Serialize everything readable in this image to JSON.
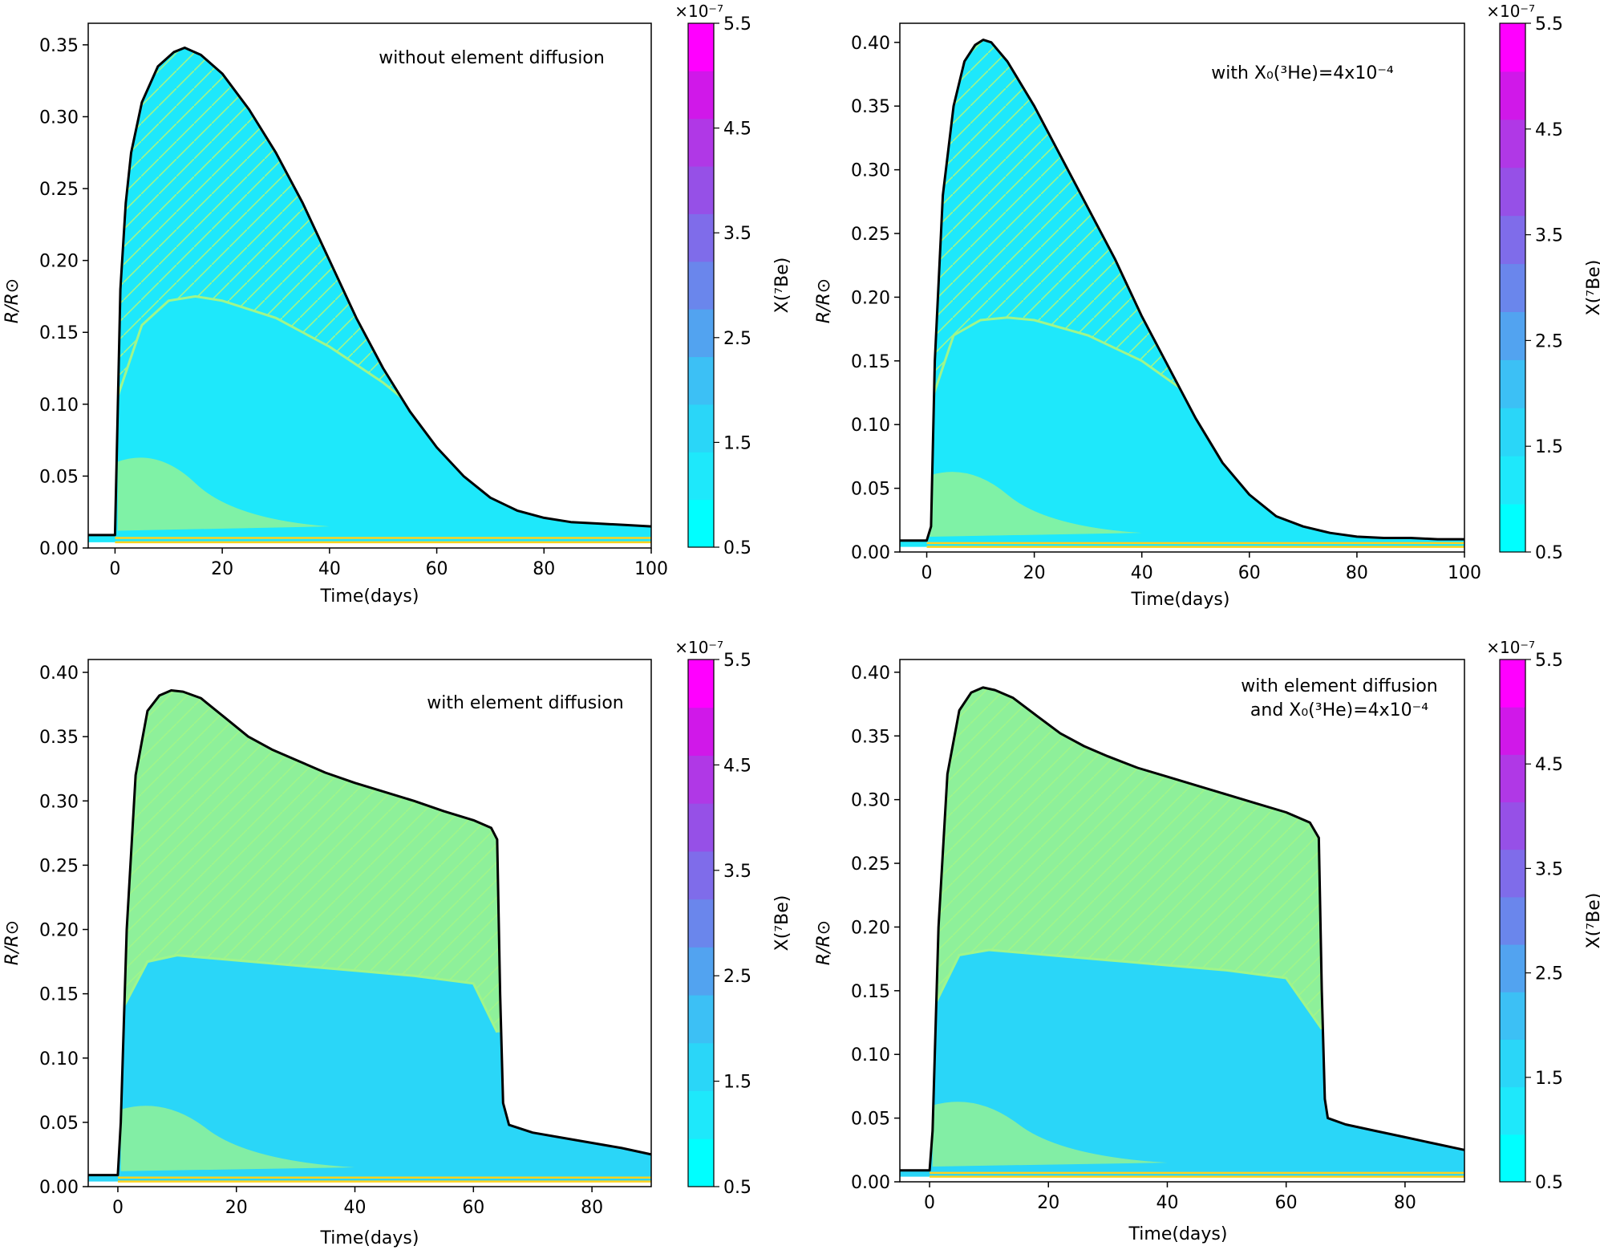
{
  "colorbar": {
    "label": "X(⁷Be)",
    "multiplier": "×10⁻⁷",
    "ticks": [
      "0.5",
      "1.5",
      "2.5",
      "3.5",
      "4.5",
      "5.5"
    ],
    "colors": [
      "#00ffff",
      "#1ee8fb",
      "#2ad6f8",
      "#3cc0f5",
      "#52a3f0",
      "#6a86ec",
      "#7f6cea",
      "#9650e7",
      "#b038e6",
      "#d018e9",
      "#ff00ff"
    ]
  },
  "chart_data": [
    {
      "type": "area",
      "title": "without element diffusion",
      "xlabel": "Time(days)",
      "ylabel": "R/R⊙",
      "xlim": [
        -5,
        100
      ],
      "ylim": [
        0.0,
        0.365
      ],
      "xticks": [
        "0",
        "20",
        "40",
        "60",
        "80",
        "100"
      ],
      "yticks": [
        "0.00",
        "0.05",
        "0.10",
        "0.15",
        "0.20",
        "0.25",
        "0.30",
        "0.35"
      ],
      "xtick_values": [
        0,
        20,
        40,
        60,
        80,
        100
      ],
      "ytick_values": [
        0,
        0.05,
        0.1,
        0.15,
        0.2,
        0.25,
        0.3,
        0.35
      ],
      "outer_radius": {
        "x": [
          -5,
          0,
          0.3,
          1,
          2,
          3,
          5,
          8,
          11,
          13,
          16,
          20,
          25,
          30,
          35,
          40,
          45,
          50,
          55,
          60,
          65,
          70,
          75,
          80,
          85,
          90,
          95,
          100
        ],
        "y": [
          0.009,
          0.009,
          0.06,
          0.18,
          0.24,
          0.275,
          0.31,
          0.335,
          0.345,
          0.348,
          0.343,
          0.33,
          0.305,
          0.275,
          0.24,
          0.2,
          0.16,
          0.125,
          0.095,
          0.07,
          0.05,
          0.035,
          0.026,
          0.021,
          0.018,
          0.017,
          0.016,
          0.015
        ]
      },
      "inner_boundary": {
        "x": [
          0,
          5,
          10,
          15,
          20,
          30,
          40,
          50,
          60,
          70,
          80,
          90
        ],
        "y": [
          0.1,
          0.155,
          0.172,
          0.175,
          0.172,
          0.16,
          0.14,
          0.115,
          0.085,
          0.055,
          0.03,
          0.018
        ]
      },
      "fill_level": 0.85
    },
    {
      "type": "area",
      "title": "with X₀(³He)=4x10⁻⁴",
      "xlabel": "Time(days)",
      "ylabel": "R/R⊙",
      "xlim": [
        -5,
        100
      ],
      "ylim": [
        0.0,
        0.415
      ],
      "xticks": [
        "0",
        "20",
        "40",
        "60",
        "80",
        "100"
      ],
      "yticks": [
        "0.00",
        "0.05",
        "0.10",
        "0.15",
        "0.20",
        "0.25",
        "0.30",
        "0.35",
        "0.40"
      ],
      "xtick_values": [
        0,
        20,
        40,
        60,
        80,
        100
      ],
      "ytick_values": [
        0,
        0.05,
        0.1,
        0.15,
        0.2,
        0.25,
        0.3,
        0.35,
        0.4
      ],
      "outer_radius": {
        "x": [
          -5,
          0,
          0.8,
          1.5,
          3,
          5,
          7,
          9,
          10.5,
          12,
          15,
          20,
          25,
          30,
          35,
          40,
          45,
          50,
          55,
          60,
          65,
          70,
          75,
          80,
          85,
          90,
          95,
          100
        ],
        "y": [
          0.009,
          0.009,
          0.02,
          0.15,
          0.28,
          0.35,
          0.385,
          0.398,
          0.402,
          0.4,
          0.385,
          0.35,
          0.31,
          0.27,
          0.23,
          0.185,
          0.145,
          0.105,
          0.07,
          0.045,
          0.028,
          0.02,
          0.015,
          0.012,
          0.011,
          0.011,
          0.01,
          0.01
        ]
      },
      "inner_boundary": {
        "x": [
          1,
          5,
          10,
          15,
          20,
          30,
          40,
          50,
          60,
          70,
          80
        ],
        "y": [
          0.12,
          0.17,
          0.182,
          0.184,
          0.182,
          0.17,
          0.15,
          0.12,
          0.08,
          0.04,
          0.015
        ]
      },
      "fill_level": 1.1
    },
    {
      "type": "area",
      "title": "with element diffusion",
      "xlabel": "Time(days)",
      "ylabel": "R/R⊙",
      "xlim": [
        -5,
        90
      ],
      "ylim": [
        0.0,
        0.41
      ],
      "xticks": [
        "0",
        "20",
        "40",
        "60",
        "80"
      ],
      "yticks": [
        "0.00",
        "0.05",
        "0.10",
        "0.15",
        "0.20",
        "0.25",
        "0.30",
        "0.35",
        "0.40"
      ],
      "xtick_values": [
        0,
        20,
        40,
        60,
        80
      ],
      "ytick_values": [
        0,
        0.05,
        0.1,
        0.15,
        0.2,
        0.25,
        0.3,
        0.35,
        0.4
      ],
      "outer_radius": {
        "x": [
          -5,
          0,
          0.5,
          1.5,
          3,
          5,
          7,
          9,
          11,
          14,
          18,
          22,
          26,
          30,
          35,
          40,
          45,
          50,
          55,
          60,
          63,
          64,
          64.5,
          65,
          66,
          70,
          75,
          80,
          85,
          90
        ],
        "y": [
          0.009,
          0.009,
          0.05,
          0.2,
          0.32,
          0.37,
          0.382,
          0.386,
          0.385,
          0.38,
          0.365,
          0.35,
          0.34,
          0.332,
          0.322,
          0.314,
          0.307,
          0.3,
          0.292,
          0.285,
          0.279,
          0.27,
          0.15,
          0.065,
          0.048,
          0.042,
          0.038,
          0.034,
          0.03,
          0.025
        ]
      },
      "inner_boundary": {
        "x": [
          1,
          5,
          10,
          20,
          30,
          40,
          50,
          60,
          64
        ],
        "y": [
          0.14,
          0.175,
          0.18,
          0.176,
          0.172,
          0.168,
          0.164,
          0.158,
          0.12
        ]
      },
      "fill_level": 1.6
    },
    {
      "type": "area",
      "title": "with element diffusion and X₀(³He)=4x10⁻⁴",
      "xlabel": "Time(days)",
      "ylabel": "R/R⊙",
      "xlim": [
        -5,
        90
      ],
      "ylim": [
        0.0,
        0.41
      ],
      "xticks": [
        "0",
        "20",
        "40",
        "60",
        "80"
      ],
      "yticks": [
        "0.00",
        "0.05",
        "0.10",
        "0.15",
        "0.20",
        "0.25",
        "0.30",
        "0.35",
        "0.40"
      ],
      "xtick_values": [
        0,
        20,
        40,
        60,
        80
      ],
      "ytick_values": [
        0,
        0.05,
        0.1,
        0.15,
        0.2,
        0.25,
        0.3,
        0.35,
        0.4
      ],
      "outer_radius": {
        "x": [
          -5,
          0,
          0.5,
          1.5,
          3,
          5,
          7,
          9,
          11,
          14,
          18,
          22,
          26,
          30,
          35,
          40,
          45,
          50,
          55,
          60,
          64,
          65.5,
          66,
          66.5,
          67,
          70,
          75,
          80,
          85,
          90
        ],
        "y": [
          0.009,
          0.009,
          0.04,
          0.2,
          0.32,
          0.37,
          0.384,
          0.388,
          0.386,
          0.38,
          0.366,
          0.352,
          0.342,
          0.334,
          0.325,
          0.318,
          0.311,
          0.304,
          0.297,
          0.29,
          0.282,
          0.27,
          0.15,
          0.065,
          0.05,
          0.045,
          0.04,
          0.035,
          0.03,
          0.025
        ]
      },
      "inner_boundary": {
        "x": [
          1,
          5,
          10,
          20,
          30,
          40,
          50,
          60,
          66
        ],
        "y": [
          0.14,
          0.178,
          0.182,
          0.178,
          0.174,
          0.17,
          0.166,
          0.16,
          0.12
        ]
      },
      "fill_level": 2.3
    }
  ]
}
